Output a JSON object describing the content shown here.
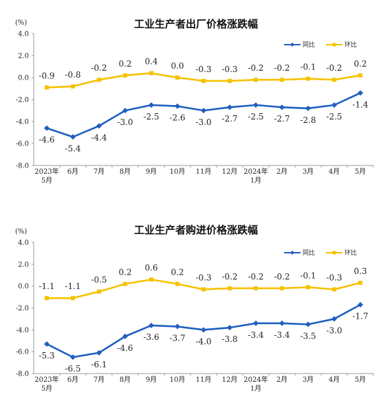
{
  "colors": {
    "yoy": "#1f5fbf",
    "mom": "#f5c200",
    "axis": "#999999"
  },
  "chart_data": [
    {
      "type": "line",
      "title": "工业生产者出厂价格涨跌幅",
      "unit_label": "(%)",
      "categories": [
        [
          "2023年",
          "5月"
        ],
        [
          "6月"
        ],
        [
          "7月"
        ],
        [
          "8月"
        ],
        [
          "9月"
        ],
        [
          "10月"
        ],
        [
          "11月"
        ],
        [
          "12月"
        ],
        [
          "2024年",
          "1月"
        ],
        [
          "2月"
        ],
        [
          "3月"
        ],
        [
          "4月"
        ],
        [
          "5月"
        ]
      ],
      "yticks": [
        "4.0",
        "2.0",
        "0.0",
        "-2.0",
        "-4.0",
        "-6.0",
        "-8.0"
      ],
      "ylim": [
        -8,
        4
      ],
      "legend": "top-right",
      "series": [
        {
          "name": "同比",
          "key": "yoy",
          "values": [
            -4.6,
            -5.4,
            -4.4,
            -3.0,
            -2.5,
            -2.6,
            -3.0,
            -2.7,
            -2.5,
            -2.7,
            -2.8,
            -2.5,
            -1.4
          ],
          "labels": [
            "-4.6",
            "-5.4",
            "-4.4",
            "-3.0",
            "-2.5",
            "-2.6",
            "-3.0",
            "-2.7",
            "-2.5",
            "-2.7",
            "-2.8",
            "-2.5",
            "-1.4"
          ]
        },
        {
          "name": "环比",
          "key": "mom",
          "values": [
            -0.9,
            -0.8,
            -0.2,
            0.2,
            0.4,
            0.0,
            -0.3,
            -0.3,
            -0.2,
            -0.2,
            -0.1,
            -0.2,
            0.2
          ],
          "labels": [
            "-0.9",
            "-0.8",
            "-0.2",
            "0.2",
            "0.4",
            "0.0",
            "-0.3",
            "-0.3",
            "-0.2",
            "-0.2",
            "-0.1",
            "-0.2",
            "0.2"
          ]
        }
      ]
    },
    {
      "type": "line",
      "title": "工业生产者购进价格涨跌幅",
      "unit_label": "(%)",
      "categories": [
        [
          "2023年",
          "5月"
        ],
        [
          "6月"
        ],
        [
          "7月"
        ],
        [
          "8月"
        ],
        [
          "9月"
        ],
        [
          "10月"
        ],
        [
          "11月"
        ],
        [
          "12月"
        ],
        [
          "2024年",
          "1月"
        ],
        [
          "2月"
        ],
        [
          "3月"
        ],
        [
          "4月"
        ],
        [
          "5月"
        ]
      ],
      "yticks": [
        "4.0",
        "2.0",
        "0.0",
        "-2.0",
        "-4.0",
        "-6.0",
        "-8.0"
      ],
      "ylim": [
        -8,
        4
      ],
      "legend": "top-right",
      "series": [
        {
          "name": "同比",
          "key": "yoy",
          "values": [
            -5.3,
            -6.5,
            -6.1,
            -4.6,
            -3.6,
            -3.7,
            -4.0,
            -3.8,
            -3.4,
            -3.4,
            -3.5,
            -3.0,
            -1.7
          ],
          "labels": [
            "-5.3",
            "-6.5",
            "-6.1",
            "-4.6",
            "-3.6",
            "-3.7",
            "-4.0",
            "-3.8",
            "-3.4",
            "-3.4",
            "-3.5",
            "-3.0",
            "-1.7"
          ]
        },
        {
          "name": "环比",
          "key": "mom",
          "values": [
            -1.1,
            -1.1,
            -0.5,
            0.2,
            0.6,
            0.2,
            -0.3,
            -0.2,
            -0.2,
            -0.2,
            -0.1,
            -0.3,
            0.3
          ],
          "labels": [
            "-1.1",
            "-1.1",
            "-0.5",
            "0.2",
            "0.6",
            "0.2",
            "-0.3",
            "-0.2",
            "-0.2",
            "-0.2",
            "-0.1",
            "-0.3",
            "0.3"
          ]
        }
      ]
    }
  ]
}
